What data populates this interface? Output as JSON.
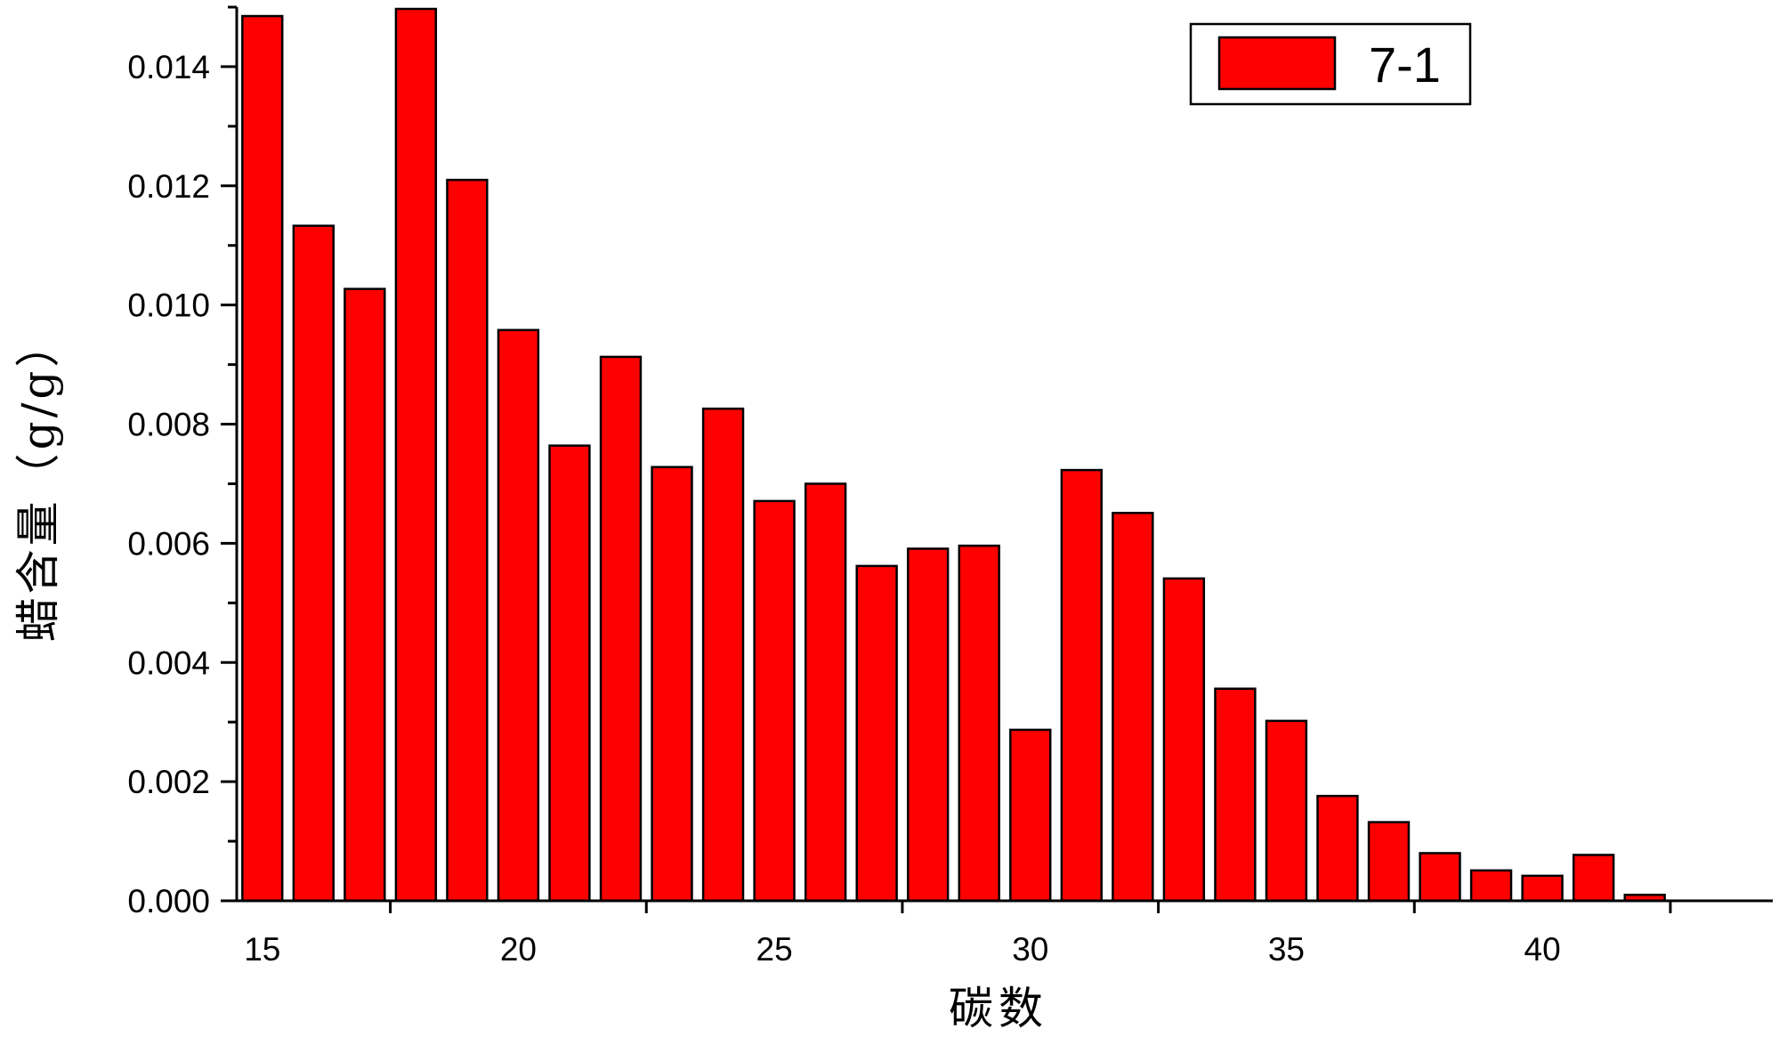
{
  "chart_data": {
    "type": "bar",
    "title": "",
    "xlabel": "碳数",
    "ylabel": "蜡含量（g/g）",
    "x": [
      15,
      16,
      17,
      18,
      19,
      20,
      21,
      22,
      23,
      24,
      25,
      26,
      27,
      28,
      29,
      30,
      31,
      32,
      33,
      34,
      35,
      36,
      37,
      38,
      39,
      40,
      41,
      42
    ],
    "series": [
      {
        "name": "7-1",
        "color": "#ff0000",
        "values": [
          0.01485,
          0.01133,
          0.01027,
          0.01497,
          0.0121,
          0.00958,
          0.00764,
          0.00913,
          0.00728,
          0.00826,
          0.00671,
          0.007,
          0.00562,
          0.00591,
          0.00596,
          0.00287,
          0.00723,
          0.00651,
          0.00541,
          0.00356,
          0.00302,
          0.00176,
          0.00132,
          0.0008,
          0.00051,
          0.00042,
          0.00077,
          0.0001
        ]
      }
    ],
    "xlim": [
      14.5,
      44.5
    ],
    "ylim": [
      0,
      0.015
    ],
    "x_major_ticks": [
      17.5,
      22.5,
      27.5,
      32.5,
      37.5,
      42.5
    ],
    "x_tick_labels": [
      {
        "x": 15,
        "label": "15"
      },
      {
        "x": 20,
        "label": "20"
      },
      {
        "x": 25,
        "label": "25"
      },
      {
        "x": 30,
        "label": "30"
      },
      {
        "x": 35,
        "label": "35"
      },
      {
        "x": 40,
        "label": "40"
      }
    ],
    "y_ticks": [
      0,
      0.002,
      0.004,
      0.006,
      0.008,
      0.01,
      0.012,
      0.014
    ],
    "y_tick_labels": [
      "0.000",
      "0.002",
      "0.004",
      "0.006",
      "0.008",
      "0.010",
      "0.012",
      "0.014"
    ],
    "y_minor_step": 0.001,
    "grid": false,
    "legend_position": "top-right"
  }
}
